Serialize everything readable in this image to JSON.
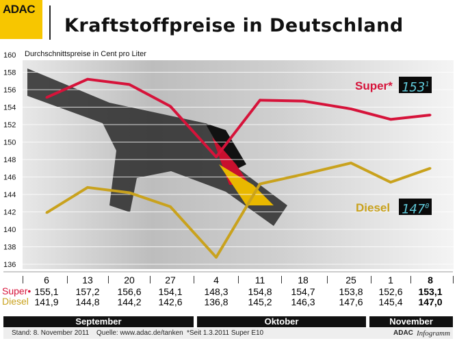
{
  "header": {
    "logo": "ADAC",
    "title": "Kraftstoffpreise in Deutschland",
    "subtitle": "Durchschnittspreise in Cent pro Liter"
  },
  "colors": {
    "super": "#d6133a",
    "diesel": "#c9a21d",
    "logo": "#f7c600"
  },
  "labels": {
    "super": "Super*",
    "diesel": "Diesel",
    "super_row": "Super•",
    "diesel_row": "Diesel"
  },
  "displays": {
    "super_main": "153",
    "super_dec": "1",
    "diesel_main": "147",
    "diesel_dec": "0"
  },
  "months": [
    "September",
    "Oktober",
    "November"
  ],
  "footer": {
    "stand": "Stand: 8. November 2011",
    "quelle": "Quelle: www.adac.de/tanken",
    "note": "*Seit 1.3.2011 Super E10",
    "brand": "ADAC",
    "brand2": "Infogramm"
  },
  "chart_data": {
    "type": "line",
    "title": "Kraftstoffpreise in Deutschland",
    "ylabel": "Durchschnittspreise in Cent pro Liter",
    "ylim": [
      136,
      160
    ],
    "yticks": [
      136,
      138,
      140,
      142,
      144,
      146,
      148,
      150,
      152,
      154,
      156,
      158,
      160
    ],
    "categories": [
      "6",
      "13",
      "20",
      "27",
      "4",
      "11",
      "18",
      "25",
      "1",
      "8"
    ],
    "series": [
      {
        "name": "Super*",
        "values": [
          155.1,
          157.2,
          156.6,
          154.1,
          148.3,
          154.8,
          154.7,
          153.8,
          152.6,
          153.1
        ],
        "labels": [
          "155,1",
          "157,2",
          "156,6",
          "154,1",
          "148,3",
          "154,8",
          "154,7",
          "153,8",
          "152,6",
          "153,1"
        ]
      },
      {
        "name": "Diesel",
        "values": [
          141.9,
          144.8,
          144.2,
          142.6,
          136.8,
          145.2,
          146.3,
          147.6,
          145.4,
          147.0
        ],
        "labels": [
          "141,9",
          "144,8",
          "144,2",
          "142,6",
          "136,8",
          "145,2",
          "146,3",
          "147,6",
          "145,4",
          "147,0"
        ]
      }
    ],
    "grid": true
  }
}
